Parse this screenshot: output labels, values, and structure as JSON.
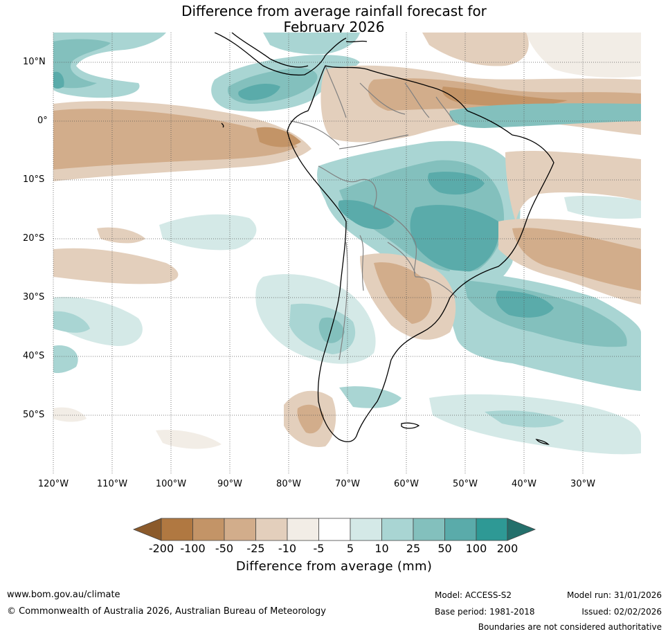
{
  "title": {
    "line1": "Difference from average rainfall forecast for",
    "line2": "February 2026"
  },
  "map": {
    "lat_labels": [
      "10°N",
      "0°",
      "10°S",
      "20°S",
      "30°S",
      "40°S",
      "50°S"
    ],
    "lon_labels": [
      "120°W",
      "110°W",
      "100°W",
      "90°W",
      "80°W",
      "70°W",
      "60°W",
      "50°W",
      "40°W",
      "30°W"
    ],
    "lat_range": [
      15,
      -60
    ],
    "lon_range": [
      -120,
      -20
    ]
  },
  "colorbar": {
    "ticks": [
      "-200",
      "-100",
      "-50",
      "-25",
      "-10",
      "-5",
      "5",
      "10",
      "25",
      "50",
      "100",
      "200"
    ],
    "label": "Difference from average (mm)",
    "colors": [
      "#8b5a2b",
      "#b07841",
      "#c39467",
      "#d2ad8b",
      "#e3cfbc",
      "#f2ede6",
      "#ffffff",
      "#d4e9e7",
      "#a9d5d3",
      "#83c0bd",
      "#5aabaa",
      "#2e9995",
      "#246f6b"
    ]
  },
  "footer": {
    "url": "www.bom.gov.au/climate",
    "copyright": "© Commonwealth of Australia 2026, Australian Bureau of Meteorology",
    "model": "Model: ACCESS-S2",
    "base_period": "Base period: 1981-2018",
    "model_run": "Model run: 31/01/2026",
    "issued": "Issued: 02/02/2026",
    "disclaimer": "Boundaries are not considered authoritative"
  }
}
